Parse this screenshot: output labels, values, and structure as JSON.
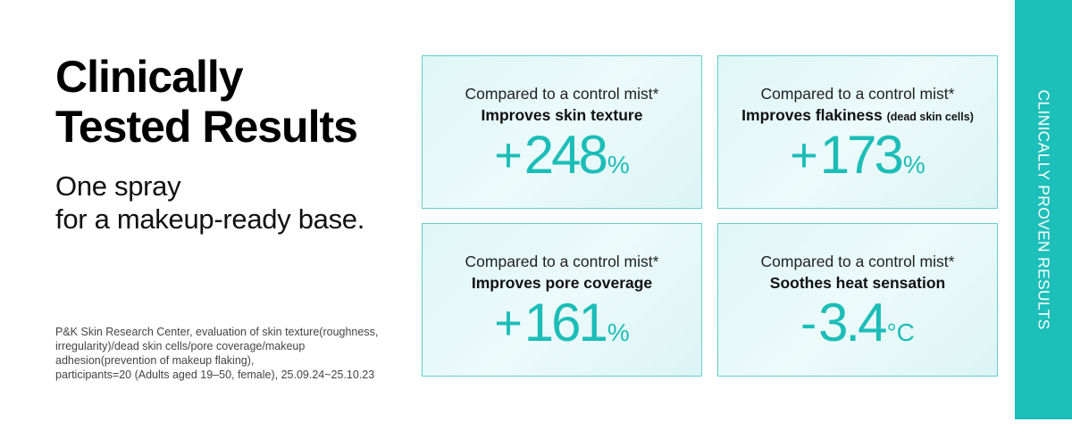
{
  "heading": {
    "title_line1": "Clinically",
    "title_line2": "Tested Results",
    "subtitle_line1": "One spray",
    "subtitle_line2": "for a makeup-ready base."
  },
  "footnote": {
    "line1": "P&K Skin Research Center, evaluation of skin texture(roughness,",
    "line2": "irregularity)/dead skin cells/pore coverage/makeup",
    "line3": "adhesion(prevention of makeup flaking),",
    "line4": "participants=20 (Adults aged 19–50, female), 25.09.24~25.10.23"
  },
  "cards": [
    {
      "compare": "Compared to a control mist*",
      "metric": "Improves skin texture",
      "metric_note": "",
      "sign": "+",
      "value": "248",
      "unit": "%"
    },
    {
      "compare": "Compared to a control mist*",
      "metric": "Improves flakiness",
      "metric_note": "(dead skin cells)",
      "sign": "+",
      "value": "173",
      "unit": "%"
    },
    {
      "compare": "Compared to a control mist*",
      "metric": "Improves pore coverage",
      "metric_note": "",
      "sign": "+",
      "value": "161",
      "unit": "%"
    },
    {
      "compare": "Compared to a control mist*",
      "metric": "Soothes heat sensation",
      "metric_note": "",
      "sign": "-",
      "value": "3.4",
      "unit": "°C"
    }
  ],
  "side_label": "CLINICALLY PROVEN RESULTS",
  "colors": {
    "accent": "#1dbfb9",
    "card_border": "#63cfd0",
    "card_fill": "#e6f8f8"
  }
}
